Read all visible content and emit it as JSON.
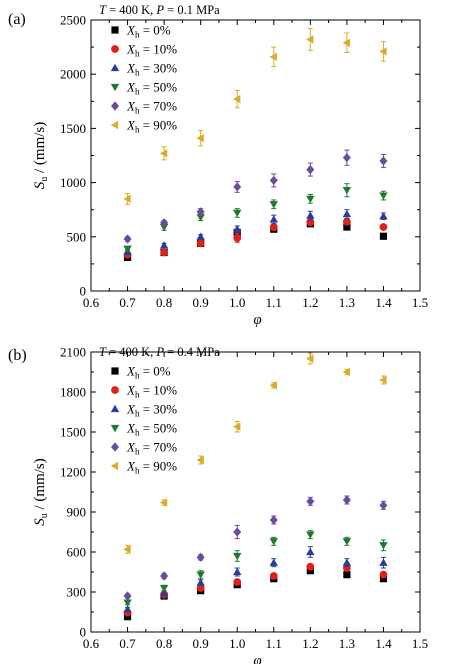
{
  "figure": {
    "colors": {
      "black": "#000000",
      "red": "#e0201b",
      "blue": "#2a3d9b",
      "green": "#1e7a2e",
      "purple": "#6a4c9c",
      "gold": "#d9ad2b"
    },
    "panels": [
      {
        "panel_label": "(a)",
        "condition": "T = 400 K, P = 0.1 MPa"
      },
      {
        "panel_label": "(b)",
        "condition": "T = 400 K, P = 0.4 MPa"
      }
    ]
  },
  "chart_data": [
    {
      "type": "scatter",
      "title": "",
      "xlabel": "φ",
      "ylabel": "Su / (mm/s)",
      "xlim": [
        0.6,
        1.5
      ],
      "ylim": [
        0,
        2500
      ],
      "xticks": [
        "0.6",
        "0.7",
        "0.8",
        "0.9",
        "1.0",
        "1.1",
        "1.2",
        "1.3",
        "1.4",
        "1.5"
      ],
      "yticks": [
        "0",
        "500",
        "1000",
        "1500",
        "2000",
        "2500"
      ],
      "legend_position": "top-left",
      "x": [
        0.7,
        0.8,
        0.9,
        1.0,
        1.1,
        1.2,
        1.3,
        1.4
      ],
      "series": [
        {
          "name": "Xh = 0%",
          "marker": "square",
          "color": "#000000",
          "values": [
            310,
            355,
            440,
            540,
            570,
            620,
            590,
            505
          ],
          "err": [
            20,
            20,
            20,
            20,
            20,
            20,
            20,
            20
          ]
        },
        {
          "name": "Xh = 10%",
          "marker": "circle",
          "color": "#e0201b",
          "values": [
            335,
            355,
            440,
            490,
            590,
            635,
            640,
            590
          ],
          "err": [
            20,
            20,
            20,
            40,
            30,
            30,
            30,
            20
          ]
        },
        {
          "name": "Xh = 30%",
          "marker": "triangle",
          "color": "#2a3d9b",
          "values": [
            360,
            420,
            500,
            570,
            660,
            695,
            710,
            690
          ],
          "err": [
            20,
            20,
            20,
            30,
            40,
            40,
            40,
            30
          ]
        },
        {
          "name": "Xh = 50%",
          "marker": "tri-down",
          "color": "#1e7a2e",
          "values": [
            390,
            590,
            680,
            720,
            800,
            850,
            930,
            880
          ],
          "err": [
            20,
            30,
            30,
            40,
            40,
            40,
            60,
            40
          ]
        },
        {
          "name": "Xh = 70%",
          "marker": "diamond",
          "color": "#6a4c9c",
          "values": [
            480,
            630,
            730,
            960,
            1020,
            1120,
            1230,
            1200
          ],
          "err": [
            20,
            20,
            30,
            50,
            60,
            60,
            70,
            60
          ]
        },
        {
          "name": "Xh = 90%",
          "marker": "tri-left",
          "color": "#d9ad2b",
          "values": [
            850,
            1270,
            1410,
            1770,
            2160,
            2320,
            2290,
            2210
          ],
          "err": [
            50,
            60,
            70,
            80,
            90,
            100,
            90,
            90
          ]
        }
      ]
    },
    {
      "type": "scatter",
      "title": "",
      "xlabel": "φ",
      "ylabel": "Su / (mm/s)",
      "xlim": [
        0.6,
        1.5
      ],
      "ylim": [
        0,
        2100
      ],
      "xticks": [
        "0.6",
        "0.7",
        "0.8",
        "0.9",
        "1.0",
        "1.1",
        "1.2",
        "1.3",
        "1.4",
        "1.5"
      ],
      "yticks": [
        "0",
        "300",
        "600",
        "900",
        "1200",
        "1500",
        "1800",
        "2100"
      ],
      "legend_position": "top-left",
      "x": [
        0.7,
        0.8,
        0.9,
        1.0,
        1.1,
        1.2,
        1.3,
        1.4
      ],
      "series": [
        {
          "name": "Xh = 0%",
          "marker": "square",
          "color": "#000000",
          "values": [
            115,
            270,
            310,
            355,
            400,
            460,
            430,
            400
          ],
          "err": [
            15,
            15,
            15,
            15,
            15,
            15,
            15,
            15
          ]
        },
        {
          "name": "Xh = 10%",
          "marker": "circle",
          "color": "#e0201b",
          "values": [
            145,
            280,
            330,
            375,
            420,
            490,
            480,
            430
          ],
          "err": [
            15,
            15,
            15,
            20,
            20,
            20,
            20,
            20
          ]
        },
        {
          "name": "Xh = 30%",
          "marker": "triangle",
          "color": "#2a3d9b",
          "values": [
            170,
            290,
            370,
            450,
            520,
            600,
            520,
            520
          ],
          "err": [
            15,
            15,
            20,
            30,
            30,
            40,
            30,
            40
          ]
        },
        {
          "name": "Xh = 50%",
          "marker": "tri-down",
          "color": "#1e7a2e",
          "values": [
            220,
            330,
            430,
            570,
            680,
            730,
            680,
            650
          ],
          "err": [
            15,
            20,
            30,
            40,
            30,
            30,
            30,
            40
          ]
        },
        {
          "name": "Xh = 70%",
          "marker": "diamond",
          "color": "#6a4c9c",
          "values": [
            270,
            420,
            560,
            750,
            840,
            980,
            990,
            950
          ],
          "err": [
            15,
            20,
            20,
            50,
            30,
            30,
            30,
            30
          ]
        },
        {
          "name": "Xh = 90%",
          "marker": "tri-left",
          "color": "#d9ad2b",
          "values": [
            620,
            970,
            1290,
            1540,
            1850,
            2050,
            1950,
            1890
          ],
          "err": [
            30,
            20,
            30,
            40,
            20,
            40,
            20,
            30
          ]
        }
      ]
    }
  ]
}
